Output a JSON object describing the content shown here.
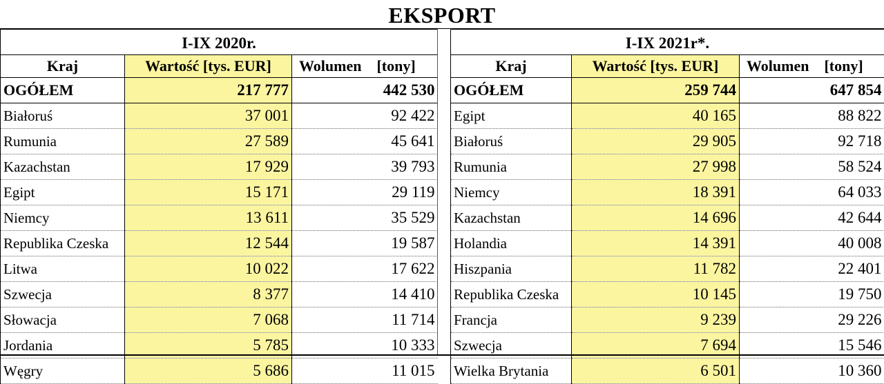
{
  "title": "EKSPORT",
  "left": {
    "period": "I-IX 2020r.",
    "headers": {
      "country": "Kraj",
      "value": "Wartość [tys. EUR]",
      "volume": "Wolumen",
      "volume_unit": "[tony]"
    },
    "total": {
      "label": "OGÓŁEM",
      "value": "217 777",
      "volume": "442 530"
    },
    "rows": [
      {
        "country": "Białoruś",
        "value": "37 001",
        "volume": "92 422"
      },
      {
        "country": "Rumunia",
        "value": "27 589",
        "volume": "45 641"
      },
      {
        "country": "Kazachstan",
        "value": "17 929",
        "volume": "39 793"
      },
      {
        "country": "Egipt",
        "value": "15 171",
        "volume": "29 119"
      },
      {
        "country": "Niemcy",
        "value": "13 611",
        "volume": "35 529"
      },
      {
        "country": "Republika Czeska",
        "value": "12 544",
        "volume": "19 587"
      },
      {
        "country": "Litwa",
        "value": "10 022",
        "volume": "17 622"
      },
      {
        "country": "Szwecja",
        "value": "8 377",
        "volume": "14 410"
      },
      {
        "country": "Słowacja",
        "value": "7 068",
        "volume": "11 714"
      },
      {
        "country": "Jordania",
        "value": "5 785",
        "volume": "10 333"
      },
      {
        "country": "Węgry",
        "value": "5 686",
        "volume": "11 015"
      }
    ]
  },
  "right": {
    "period": "I-IX 2021r*.",
    "headers": {
      "country": "Kraj",
      "value": "Wartość [tys. EUR]",
      "volume": "Wolumen",
      "volume_unit": "[tony]"
    },
    "total": {
      "label": "OGÓŁEM",
      "value": "259 744",
      "volume": "647 854"
    },
    "rows": [
      {
        "country": "Egipt",
        "value": "40 165",
        "volume": "88 822"
      },
      {
        "country": "Białoruś",
        "value": "29 905",
        "volume": "92 718"
      },
      {
        "country": "Rumunia",
        "value": "27 998",
        "volume": "58 524"
      },
      {
        "country": "Niemcy",
        "value": "18 391",
        "volume": "64 033"
      },
      {
        "country": "Kazachstan",
        "value": "14 696",
        "volume": "42 644"
      },
      {
        "country": "Holandia",
        "value": "14 391",
        "volume": "40 008"
      },
      {
        "country": "Hiszpania",
        "value": "11 782",
        "volume": "22 401"
      },
      {
        "country": "Republika Czeska",
        "value": "10 145",
        "volume": "19 750"
      },
      {
        "country": "Francja",
        "value": "9 239",
        "volume": "29 226"
      },
      {
        "country": "Szwecja",
        "value": "7 694",
        "volume": "15 546"
      },
      {
        "country": "Wielka Brytania",
        "value": "6 501",
        "volume": "10 360"
      }
    ]
  },
  "colors": {
    "highlight": "#fbf5a0"
  }
}
